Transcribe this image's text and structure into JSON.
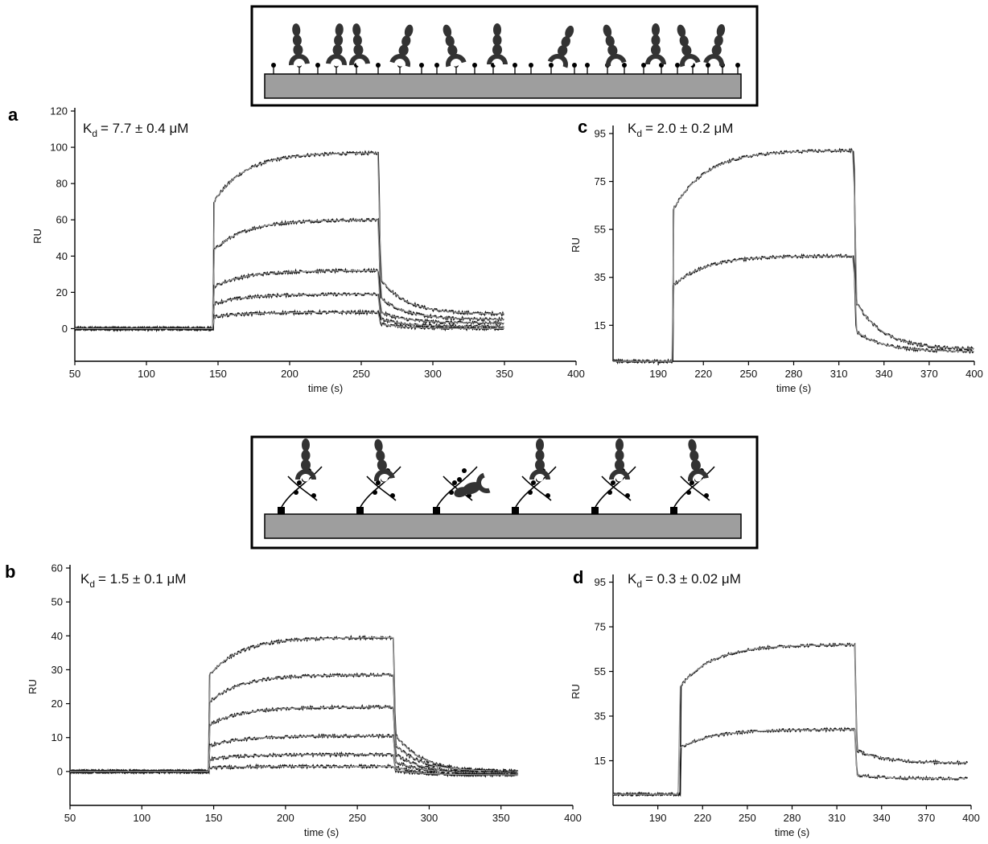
{
  "schematics": {
    "top": {
      "description_hidden": true
    },
    "middle": {
      "description_hidden": true
    }
  },
  "colors": {
    "trace": "#111111",
    "fit": "#9a9a9a",
    "surface": "#9e9e9e",
    "protein": "#333333"
  },
  "chart_data": [
    {
      "panel": "a",
      "type": "line",
      "kd_prefix": "K",
      "kd_sub": "d",
      "kd_value": "= 7.7 ± 0.4 μM",
      "xlabel": "time (s)",
      "ylabel": "RU",
      "xlim": [
        50,
        400
      ],
      "ylim": [
        -18,
        120
      ],
      "xticks": [
        50,
        100,
        150,
        200,
        250,
        300,
        350,
        400
      ],
      "yticks": [
        0,
        20,
        40,
        60,
        80,
        100,
        120
      ],
      "inj_start": 147,
      "inj_end": 262,
      "data_end": 350,
      "data_start": 50,
      "plateaus": [
        97,
        60,
        32,
        19,
        9
      ],
      "dissoc_levels": [
        8,
        5,
        3,
        1,
        0
      ],
      "series": [
        {
          "name": "",
          "values": [
            97
          ]
        },
        {
          "name": "",
          "values": [
            60
          ]
        },
        {
          "name": "",
          "values": [
            32
          ]
        },
        {
          "name": "",
          "values": [
            19
          ]
        },
        {
          "name": "",
          "values": [
            9
          ]
        }
      ]
    },
    {
      "panel": "b",
      "type": "line",
      "kd_prefix": "K",
      "kd_sub": "d",
      "kd_value": "= 1.5 ± 0.1 μM",
      "xlabel": "time (s)",
      "ylabel": "RU",
      "xlim": [
        50,
        400
      ],
      "ylim": [
        -10,
        60
      ],
      "xticks": [
        50,
        100,
        150,
        200,
        250,
        300,
        350,
        400
      ],
      "yticks": [
        0,
        10,
        20,
        30,
        40,
        50,
        60
      ],
      "inj_start": 147,
      "inj_end": 275,
      "data_end": 362,
      "data_start": 50,
      "plateaus": [
        39.5,
        28.5,
        19,
        10.5,
        5,
        1.5
      ],
      "dissoc_levels": [
        0,
        0,
        -0.5,
        -0.5,
        -1,
        -1
      ],
      "series": [
        {
          "name": "",
          "values": [
            39.5
          ]
        },
        {
          "name": "",
          "values": [
            28.5
          ]
        },
        {
          "name": "",
          "values": [
            19
          ]
        },
        {
          "name": "",
          "values": [
            10.5
          ]
        },
        {
          "name": "",
          "values": [
            5
          ]
        },
        {
          "name": "",
          "values": [
            1.5
          ]
        }
      ]
    },
    {
      "panel": "c",
      "type": "line",
      "kd_prefix": "K",
      "kd_sub": "d",
      "kd_value": "= 2.0 ± 0.2 μM",
      "xlabel": "time (s)",
      "ylabel": "RU",
      "xlim": [
        160,
        400
      ],
      "ylim": [
        0,
        97
      ],
      "xticks": [
        190,
        220,
        250,
        280,
        310,
        340,
        370,
        400
      ],
      "yticks": [
        15,
        35,
        55,
        75,
        95
      ],
      "inj_start": 200,
      "inj_end": 320,
      "data_end": 400,
      "data_start": 160,
      "plateaus": [
        88,
        44
      ],
      "dissoc_levels": [
        5,
        4
      ],
      "series": [
        {
          "name": "",
          "values": [
            88
          ]
        },
        {
          "name": "",
          "values": [
            44
          ]
        }
      ]
    },
    {
      "panel": "d",
      "type": "line",
      "kd_prefix": "K",
      "kd_sub": "d",
      "kd_value": "= 0.3 ± 0.02 μM",
      "xlabel": "time (s)",
      "ylabel": "RU",
      "xlim": [
        160,
        400
      ],
      "ylim": [
        -5,
        97
      ],
      "xticks": [
        190,
        220,
        250,
        280,
        310,
        340,
        370,
        400
      ],
      "yticks": [
        15,
        35,
        55,
        75,
        95
      ],
      "inj_start": 205,
      "inj_end": 322,
      "data_end": 398,
      "data_start": 160,
      "plateaus": [
        67,
        29
      ],
      "dissoc_levels": [
        14,
        7
      ],
      "series": [
        {
          "name": "",
          "values": [
            67
          ]
        },
        {
          "name": "",
          "values": [
            29
          ]
        }
      ]
    }
  ]
}
